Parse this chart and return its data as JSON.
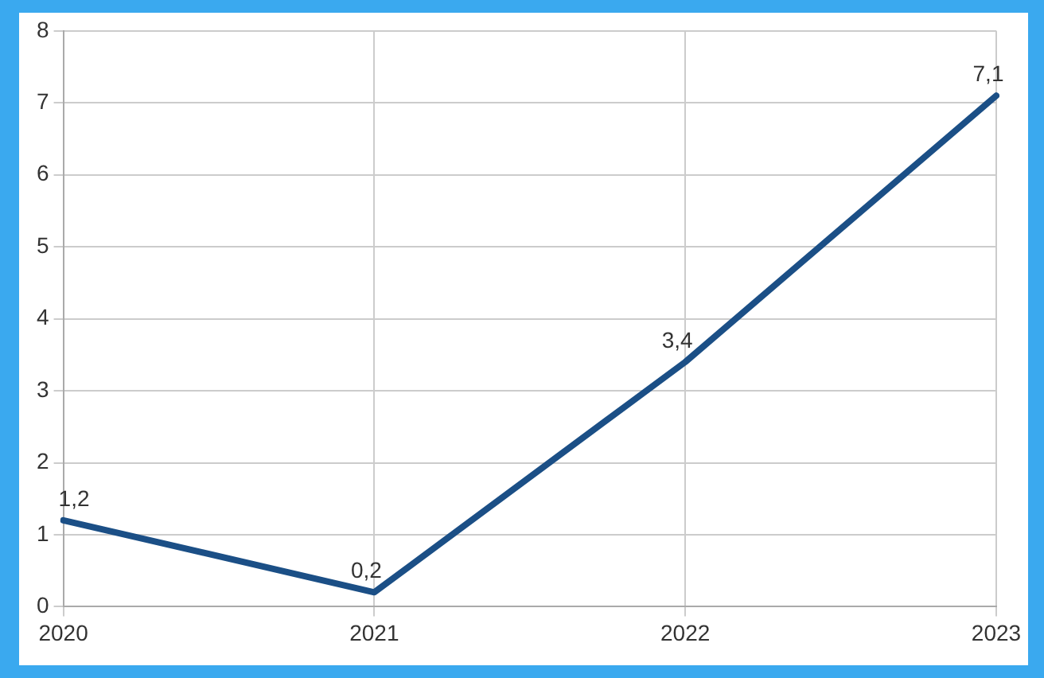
{
  "chart_data": {
    "type": "line",
    "categories": [
      "2020",
      "2021",
      "2022",
      "2023"
    ],
    "series": [
      {
        "color": "#1b4f86",
        "values": [
          1.2,
          0.2,
          3.4,
          7.1
        ],
        "value_labels": [
          "1,2",
          "0,2",
          "3,4",
          "7,1"
        ]
      }
    ],
    "ylim": [
      0,
      8
    ],
    "yticks": [
      0,
      1,
      2,
      3,
      4,
      5,
      6,
      7,
      8
    ],
    "grid": true,
    "legend": false,
    "marker": "none",
    "line_style": "solid"
  }
}
